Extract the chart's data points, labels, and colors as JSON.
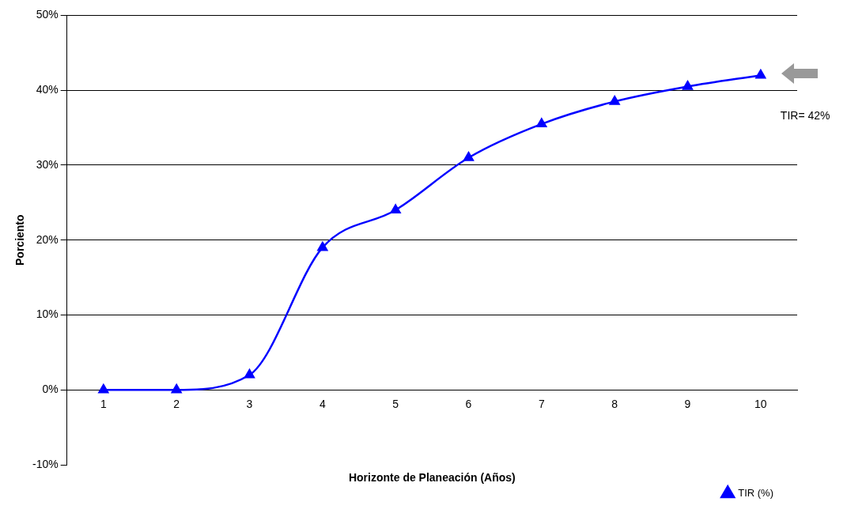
{
  "chart_data": {
    "type": "line",
    "xlabel": "Horizonte de Planeación (Años)",
    "ylabel": "Porciento",
    "categories": [
      "1",
      "2",
      "3",
      "4",
      "5",
      "6",
      "7",
      "8",
      "9",
      "10"
    ],
    "series": [
      {
        "name": "TIR (%)",
        "color": "#0000ff",
        "values": [
          0,
          0,
          2,
          19,
          24,
          31,
          35.5,
          38.5,
          40.5,
          42
        ]
      }
    ],
    "ylim": [
      -10,
      50
    ],
    "yticks": [
      {
        "value": -10,
        "label": "-10%"
      },
      {
        "value": 0,
        "label": "0%"
      },
      {
        "value": 10,
        "label": "10%"
      },
      {
        "value": 20,
        "label": "20%"
      },
      {
        "value": 30,
        "label": "30%"
      },
      {
        "value": 40,
        "label": "40%"
      },
      {
        "value": 50,
        "label": "50%"
      }
    ],
    "grid": "y",
    "legend": "bottom right",
    "marker": "triangle",
    "line_style": "solid",
    "annotations": [
      "TIR= 42%"
    ]
  }
}
